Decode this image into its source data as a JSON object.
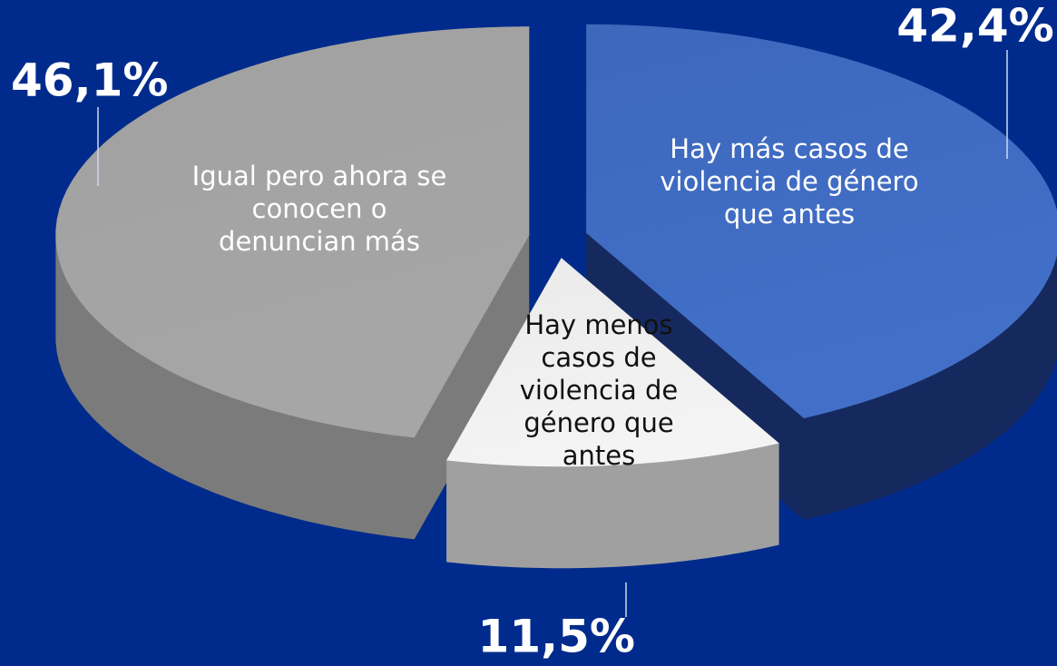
{
  "chart_data": {
    "type": "pie",
    "categories": [
      "Hay más casos de violencia de género que antes",
      "Hay menos casos de violencia de género que antes",
      "Igual pero ahora se conocen o denuncian más"
    ],
    "values": [
      42.4,
      11.5,
      46.1
    ],
    "value_labels": [
      "42,4%",
      "11,5%",
      "46,1%"
    ],
    "colors": [
      "#4270c9",
      "#f4f4f4",
      "#a6a6a6"
    ]
  }
}
